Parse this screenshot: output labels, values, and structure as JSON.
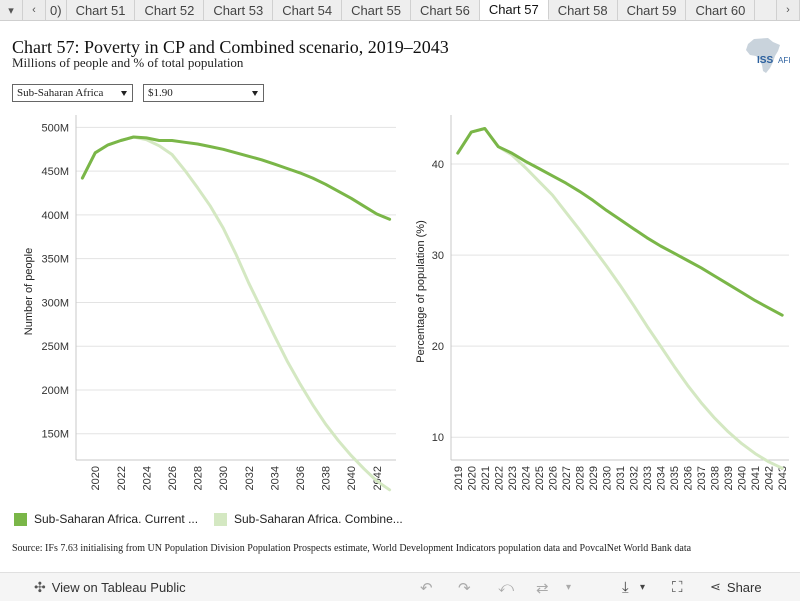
{
  "tabs": {
    "clipped": "0)",
    "items": [
      "Chart 51",
      "Chart 52",
      "Chart 53",
      "Chart 54",
      "Chart 55",
      "Chart 56",
      "Chart 57",
      "Chart 58",
      "Chart 59",
      "Chart 60"
    ],
    "active_index": 6
  },
  "header": {
    "title": "Chart 57: Poverty in CP and Combined scenario, 2019–2043",
    "subtitle": "Millions of people and % of total population",
    "logo_text": "ISS AFI"
  },
  "filters": {
    "region": "Sub-Saharan Africa",
    "threshold": "$1.90"
  },
  "colors": {
    "current": "#7ab648",
    "combined": "#d4e8c2"
  },
  "legend": {
    "current": "Sub-Saharan Africa. Current ...",
    "combined": "Sub-Saharan Africa. Combine..."
  },
  "source": "Source: IFs 7.63 initialising from UN Population Division Population Prospects estimate, World Development Indicators population data and PovcalNet World Bank data",
  "footer": {
    "view_label": "View on Tableau Public",
    "share_label": "Share"
  },
  "chart_data": [
    {
      "type": "line",
      "ylabel": "Number of people",
      "ylim": [
        120,
        505
      ],
      "yticks": [
        150,
        200,
        250,
        300,
        350,
        400,
        450,
        500
      ],
      "ytick_labels": [
        "150M",
        "200M",
        "250M",
        "300M",
        "350M",
        "400M",
        "450M",
        "500M"
      ],
      "xlim": [
        2018.5,
        2043.5
      ],
      "xticks": [
        2020,
        2022,
        2024,
        2026,
        2028,
        2030,
        2032,
        2034,
        2036,
        2038,
        2040,
        2042
      ],
      "xtick_labels": [
        "2020",
        "2022",
        "2024",
        "2026",
        "2028",
        "2030",
        "2032",
        "2034",
        "2036",
        "2038",
        "2040",
        "2042"
      ],
      "x": [
        2019,
        2020,
        2021,
        2022,
        2023,
        2024,
        2025,
        2026,
        2027,
        2028,
        2029,
        2030,
        2031,
        2032,
        2033,
        2034,
        2035,
        2036,
        2037,
        2038,
        2039,
        2040,
        2041,
        2042,
        2043
      ],
      "series": [
        {
          "key": "current",
          "values": [
            442,
            471,
            480,
            485,
            489,
            488,
            485,
            485,
            483,
            481,
            478,
            475,
            471,
            467,
            463,
            458,
            453,
            448,
            442,
            435,
            427,
            419,
            410,
            401,
            395
          ]
        },
        {
          "key": "combined",
          "values": [
            442,
            471,
            480,
            485,
            489,
            486,
            479,
            469,
            451,
            431,
            410,
            385,
            355,
            322,
            292,
            262,
            233,
            207,
            183,
            161,
            142,
            125,
            110,
            96,
            86
          ]
        }
      ]
    },
    {
      "type": "line",
      "ylabel": "Percentage of population (%)",
      "ylim": [
        7.5,
        44.5
      ],
      "yticks": [
        10,
        20,
        30,
        40
      ],
      "ytick_labels": [
        "10",
        "20",
        "30",
        "40"
      ],
      "xlim": [
        2018.5,
        2043.5
      ],
      "xticks": [
        2019,
        2020,
        2021,
        2022,
        2023,
        2024,
        2025,
        2026,
        2027,
        2028,
        2029,
        2030,
        2031,
        2032,
        2033,
        2034,
        2035,
        2036,
        2037,
        2038,
        2039,
        2040,
        2041,
        2042,
        2043
      ],
      "xtick_labels": [
        "2019",
        "2020",
        "2021",
        "2022",
        "2023",
        "2024",
        "2025",
        "2026",
        "2027",
        "2028",
        "2029",
        "2030",
        "2031",
        "2032",
        "2033",
        "2034",
        "2035",
        "2036",
        "2037",
        "2038",
        "2039",
        "2040",
        "2041",
        "2042",
        "2043"
      ],
      "x": [
        2019,
        2020,
        2021,
        2022,
        2023,
        2024,
        2025,
        2026,
        2027,
        2028,
        2029,
        2030,
        2031,
        2032,
        2033,
        2034,
        2035,
        2036,
        2037,
        2038,
        2039,
        2040,
        2041,
        2042,
        2043
      ],
      "series": [
        {
          "key": "current",
          "values": [
            41.2,
            43.5,
            43.9,
            41.9,
            41.2,
            40.3,
            39.5,
            38.7,
            37.9,
            37.0,
            36.0,
            34.9,
            33.9,
            32.9,
            31.9,
            31.0,
            30.2,
            29.4,
            28.6,
            27.7,
            26.8,
            25.9,
            25.0,
            24.2,
            23.4
          ]
        },
        {
          "key": "combined",
          "values": [
            41.2,
            43.5,
            43.9,
            41.9,
            41.0,
            39.6,
            38.1,
            36.6,
            34.7,
            32.8,
            30.8,
            28.8,
            26.7,
            24.5,
            22.2,
            20.0,
            17.8,
            15.7,
            13.8,
            12.1,
            10.6,
            9.3,
            8.2,
            7.3,
            6.6
          ]
        }
      ]
    }
  ]
}
